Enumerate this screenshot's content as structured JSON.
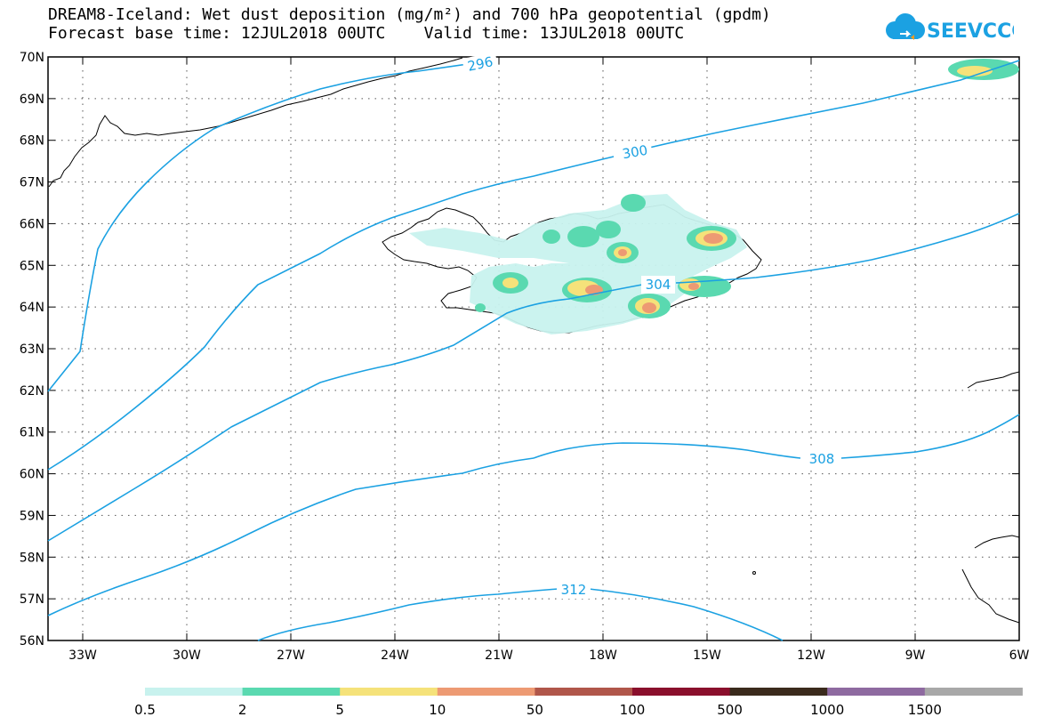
{
  "title": {
    "line1": "DREAM8-Iceland: Wet dust deposition (mg/m²) and 700 hPa geopotential (gpdm)",
    "line2": "Forecast base time: 12JUL2018 00UTC    Valid time: 13JUL2018 00UTC"
  },
  "logo": {
    "text": "SEEVCCC",
    "icon": "cloud-icon"
  },
  "map": {
    "lon_range": [
      -34,
      -6
    ],
    "lat_range": [
      56,
      70
    ],
    "lat_labels": [
      "70N",
      "69N",
      "68N",
      "67N",
      "66N",
      "65N",
      "64N",
      "63N",
      "62N",
      "61N",
      "60N",
      "59N",
      "58N",
      "57N",
      "56N"
    ],
    "lon_labels": [
      "33W",
      "30W",
      "27W",
      "24W",
      "21W",
      "18W",
      "15W",
      "12W",
      "9W",
      "6W"
    ],
    "contour_color": "#1ba1e2",
    "contour_labels": [
      "296",
      "300",
      "304",
      "308",
      "312"
    ]
  },
  "legend": {
    "colors": [
      "#c8f2ee",
      "#5ad9b0",
      "#f5e27a",
      "#ed9a73",
      "#b0564a",
      "#8a0f2c",
      "#3a2a1c",
      "#8e6aa0",
      "#a8a8a8"
    ],
    "labels": [
      "0.5",
      "2",
      "5",
      "10",
      "50",
      "100",
      "500",
      "1000",
      "1500"
    ]
  }
}
